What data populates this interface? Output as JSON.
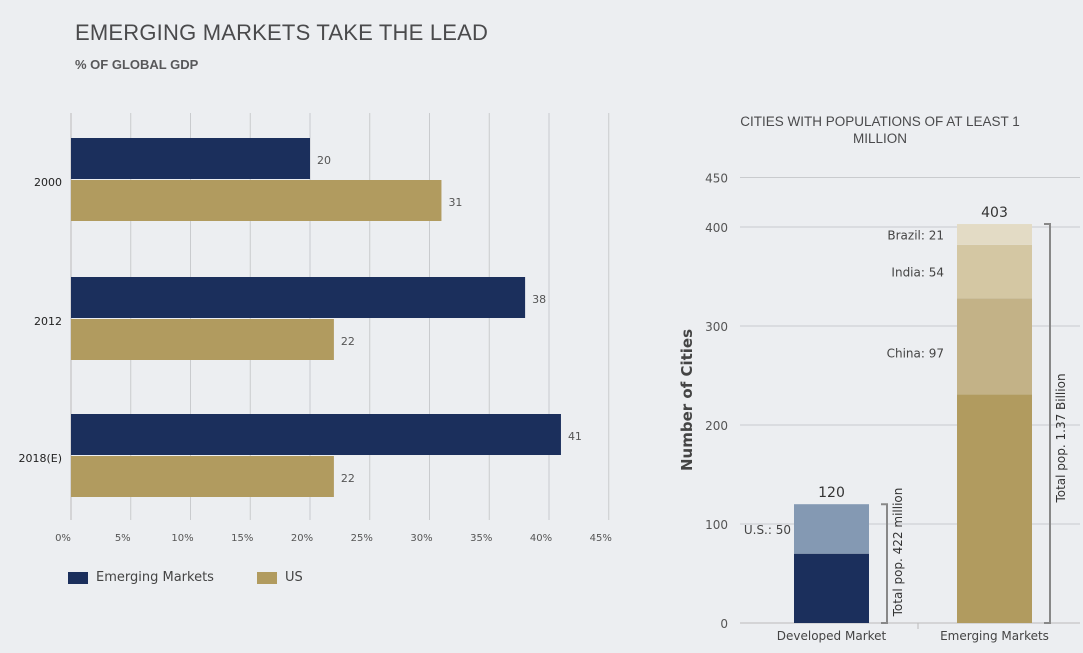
{
  "chart_data": [
    {
      "type": "bar",
      "orientation": "horizontal",
      "title": "EMERGING MARKETS TAKE THE LEAD",
      "subtitle": "% OF GLOBAL GDP",
      "categories": [
        "2000",
        "2012",
        "2018(E)"
      ],
      "series": [
        {
          "name": "Emerging Markets",
          "color": "#1b2f5c",
          "values": [
            20,
            38,
            41
          ]
        },
        {
          "name": "US",
          "color": "#b19b5f",
          "values": [
            31,
            22,
            22
          ]
        }
      ],
      "xlim": [
        0,
        45
      ],
      "xticks": [
        "0%",
        "5%",
        "10%",
        "15%",
        "20%",
        "25%",
        "30%",
        "35%",
        "40%",
        "45%"
      ],
      "grid": true,
      "legend": "bottom-left"
    },
    {
      "type": "bar",
      "stacked": true,
      "title": "CITIES WITH POPULATIONS OF AT LEAST 1 MILLION",
      "ylabel": "Number of Cities",
      "categories": [
        "Developed Market",
        "Emerging Markets"
      ],
      "ylim": [
        0,
        450
      ],
      "yticks": [
        "0",
        "100",
        "200",
        "300",
        "400",
        "450"
      ],
      "stacks": [
        {
          "total": 120,
          "total_label": "120",
          "bracket_label": "Total pop. 422 million",
          "segments": [
            {
              "label": "",
              "value": 70,
              "color": "#1b2f5c"
            },
            {
              "label": "U.S.: 50",
              "value": 50,
              "color": "#8499b3"
            }
          ]
        },
        {
          "total": 403,
          "total_label": "403",
          "bracket_label": "Total pop. 1.37 Billion",
          "segments": [
            {
              "label": "",
              "value": 231,
              "color": "#b19b5f"
            },
            {
              "label": "China: 97",
              "value": 97,
              "color": "#c3b287"
            },
            {
              "label": "India: 54",
              "value": 54,
              "color": "#d4c7a3"
            },
            {
              "label": "Brazil: 21",
              "value": 21,
              "color": "#e3dbc5"
            }
          ]
        }
      ]
    }
  ]
}
